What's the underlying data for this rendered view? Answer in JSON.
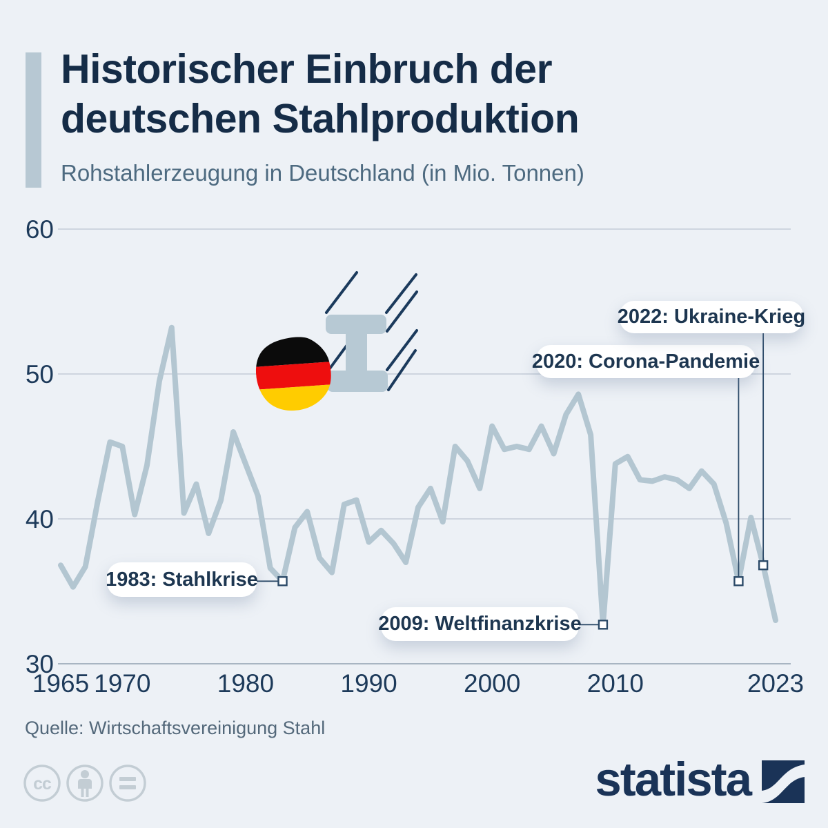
{
  "header": {
    "title_line1": "Historischer Einbruch der",
    "title_line2": "deutschen Stahlproduktion",
    "subtitle": "Rohstahlerzeugung in Deutschland (in Mio. Tonnen)"
  },
  "chart_data": {
    "type": "line",
    "title": "Historischer Einbruch der deutschen Stahlproduktion",
    "subtitle": "Rohstahlerzeugung in Deutschland (in Mio. Tonnen)",
    "x": [
      1965,
      1966,
      1967,
      1968,
      1969,
      1970,
      1971,
      1972,
      1973,
      1974,
      1975,
      1976,
      1977,
      1978,
      1979,
      1980,
      1981,
      1982,
      1983,
      1984,
      1985,
      1986,
      1987,
      1988,
      1989,
      1990,
      1991,
      1992,
      1993,
      1994,
      1995,
      1996,
      1997,
      1998,
      1999,
      2000,
      2001,
      2002,
      2003,
      2004,
      2005,
      2006,
      2007,
      2008,
      2009,
      2010,
      2011,
      2012,
      2013,
      2014,
      2015,
      2016,
      2017,
      2018,
      2019,
      2020,
      2021,
      2022,
      2023
    ],
    "series": [
      {
        "name": "Rohstahlerzeugung in Deutschland (Mio. Tonnen)",
        "values": [
          36.8,
          35.3,
          36.7,
          41.2,
          45.3,
          45.0,
          40.3,
          43.7,
          49.5,
          53.2,
          40.4,
          42.4,
          39.0,
          41.3,
          46.0,
          43.8,
          41.6,
          36.6,
          35.7,
          39.4,
          40.5,
          37.3,
          36.3,
          41.0,
          41.3,
          38.4,
          39.2,
          38.3,
          37.0,
          40.8,
          42.1,
          39.8,
          45.0,
          44.0,
          42.1,
          46.4,
          44.8,
          45.0,
          44.8,
          46.4,
          44.5,
          47.2,
          48.6,
          45.8,
          32.7,
          43.8,
          44.3,
          42.7,
          42.6,
          42.9,
          42.7,
          42.1,
          43.3,
          42.4,
          39.7,
          35.7,
          40.1,
          36.8,
          33.0
        ]
      }
    ],
    "ylim": [
      30,
      60
    ],
    "yticks": [
      30,
      40,
      50,
      60
    ],
    "xticks": [
      1965,
      1970,
      1980,
      1990,
      2000,
      2010,
      2023
    ],
    "grid": true,
    "legend": "none",
    "annotations": [
      {
        "label": "1983: Stahlkrise",
        "year": 1983,
        "value": 35.7
      },
      {
        "label": "2009: Weltfinanzkrise",
        "year": 2009,
        "value": 32.7
      },
      {
        "label": "2020: Corona-Pandemie",
        "year": 2020,
        "value": 35.7
      },
      {
        "label": "2022: Ukraine-Krieg",
        "year": 2022,
        "value": 36.8
      }
    ]
  },
  "colors": {
    "background": "#edf1f6",
    "line": "#b3c6d1",
    "gridline": "#c3ccd7",
    "baseline": "#a8b5c2",
    "axis_text": "#1d3a5a",
    "title": "#152c47",
    "subtitle_text": "#4d6a80",
    "accent_bar": "#b7c8d3",
    "annotation_text": "#1d3650",
    "callout": "#2c4a68",
    "flag_black": "#0b0b0b",
    "flag_red": "#ee0e0e",
    "flag_gold": "#ffcc00",
    "steel_beam": "#b7c9d4",
    "speed_lines": "#1b3a5c",
    "brand_navy": "#1a3357",
    "cc_gray": "#c3cdd4"
  },
  "icons": {
    "flag": "german-flag-sticker",
    "beam": "steel-ibeam",
    "cc": [
      "cc-icon",
      "attribution-person-icon",
      "equals-icon"
    ],
    "brand_mark": "statista-logo-mark"
  },
  "footer": {
    "source": "Quelle: Wirtschaftsvereinigung Stahl",
    "brand": "statista"
  }
}
